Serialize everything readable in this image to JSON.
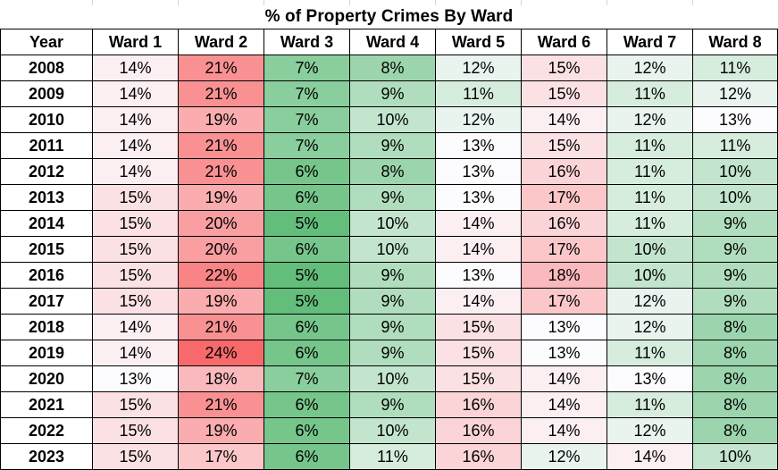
{
  "chart_data": {
    "type": "heatmap",
    "title": "% of Property Crimes By Ward",
    "row_header": "Year",
    "columns": [
      "Ward 1",
      "Ward 2",
      "Ward 3",
      "Ward 4",
      "Ward 5",
      "Ward 6",
      "Ward 7",
      "Ward 8"
    ],
    "rows": [
      "2008",
      "2009",
      "2010",
      "2011",
      "2012",
      "2013",
      "2014",
      "2015",
      "2016",
      "2017",
      "2018",
      "2019",
      "2020",
      "2021",
      "2022",
      "2023"
    ],
    "values": [
      [
        14,
        21,
        7,
        8,
        12,
        15,
        12,
        11
      ],
      [
        14,
        21,
        7,
        9,
        11,
        15,
        11,
        12
      ],
      [
        14,
        19,
        7,
        10,
        12,
        14,
        12,
        13
      ],
      [
        14,
        21,
        7,
        9,
        13,
        15,
        11,
        11
      ],
      [
        14,
        21,
        6,
        8,
        13,
        16,
        11,
        10
      ],
      [
        15,
        19,
        6,
        9,
        13,
        17,
        11,
        10
      ],
      [
        15,
        20,
        5,
        10,
        14,
        16,
        11,
        9
      ],
      [
        15,
        20,
        6,
        10,
        14,
        17,
        10,
        9
      ],
      [
        15,
        22,
        5,
        9,
        13,
        18,
        10,
        9
      ],
      [
        15,
        19,
        5,
        9,
        14,
        17,
        12,
        9
      ],
      [
        14,
        21,
        6,
        9,
        15,
        13,
        12,
        8
      ],
      [
        14,
        24,
        6,
        9,
        15,
        13,
        11,
        8
      ],
      [
        13,
        18,
        7,
        10,
        15,
        14,
        13,
        8
      ],
      [
        15,
        21,
        6,
        9,
        16,
        14,
        11,
        8
      ],
      [
        15,
        19,
        6,
        10,
        16,
        14,
        12,
        8
      ],
      [
        15,
        17,
        6,
        11,
        16,
        12,
        14,
        10
      ]
    ],
    "value_suffix": "%",
    "color_scale": {
      "low": "#63be7b",
      "mid": "#fcfcff",
      "high": "#f8696b",
      "min": 5,
      "mid_value": 13,
      "max": 24
    },
    "labels": [
      [
        "14%",
        "21%",
        "7%",
        "8%",
        "12%",
        "15%",
        "12%",
        "11%"
      ],
      [
        "14%",
        "21%",
        "7%",
        "9%",
        "11%",
        "15%",
        "11%",
        "12%"
      ],
      [
        "14%",
        "19%",
        "7%",
        "10%",
        "12%",
        "14%",
        "12%",
        "13%"
      ],
      [
        "14%",
        "21%",
        "7%",
        "9%",
        "13%",
        "15%",
        "11%",
        "11%"
      ],
      [
        "14%",
        "21%",
        "6%",
        "8%",
        "13%",
        "16%",
        "11%",
        "10%"
      ],
      [
        "15%",
        "19%",
        "6%",
        "9%",
        "13%",
        "17%",
        "11%",
        "10%"
      ],
      [
        "15%",
        "20%",
        "5%",
        "10%",
        "14%",
        "16%",
        "11%",
        "9%"
      ],
      [
        "15%",
        "20%",
        "6%",
        "10%",
        "14%",
        "17%",
        "10%",
        "9%"
      ],
      [
        "15%",
        "22%",
        "5%",
        "9%",
        "13%",
        "18%",
        "10%",
        "9%"
      ],
      [
        "15%",
        "19%",
        "5%",
        "9%",
        "14%",
        "17%",
        "12%",
        "9%"
      ],
      [
        "14%",
        "21%",
        "6%",
        "9%",
        "15%",
        "13%",
        "12%",
        "8%"
      ],
      [
        "14%",
        "24%",
        "6%",
        "9%",
        "15%",
        "13%",
        "11%",
        "8%"
      ],
      [
        "13%",
        "18%",
        "7%",
        "10%",
        "15%",
        "14%",
        "13%",
        "8%"
      ],
      [
        "15%",
        "21%",
        "6%",
        "9%",
        "16%",
        "14%",
        "11%",
        "8%"
      ],
      [
        "15%",
        "19%",
        "6%",
        "10%",
        "16%",
        "14%",
        "12%",
        "8%"
      ],
      [
        "15%",
        "17%",
        "6%",
        "11%",
        "16%",
        "12%",
        "14%",
        "10%"
      ]
    ]
  }
}
